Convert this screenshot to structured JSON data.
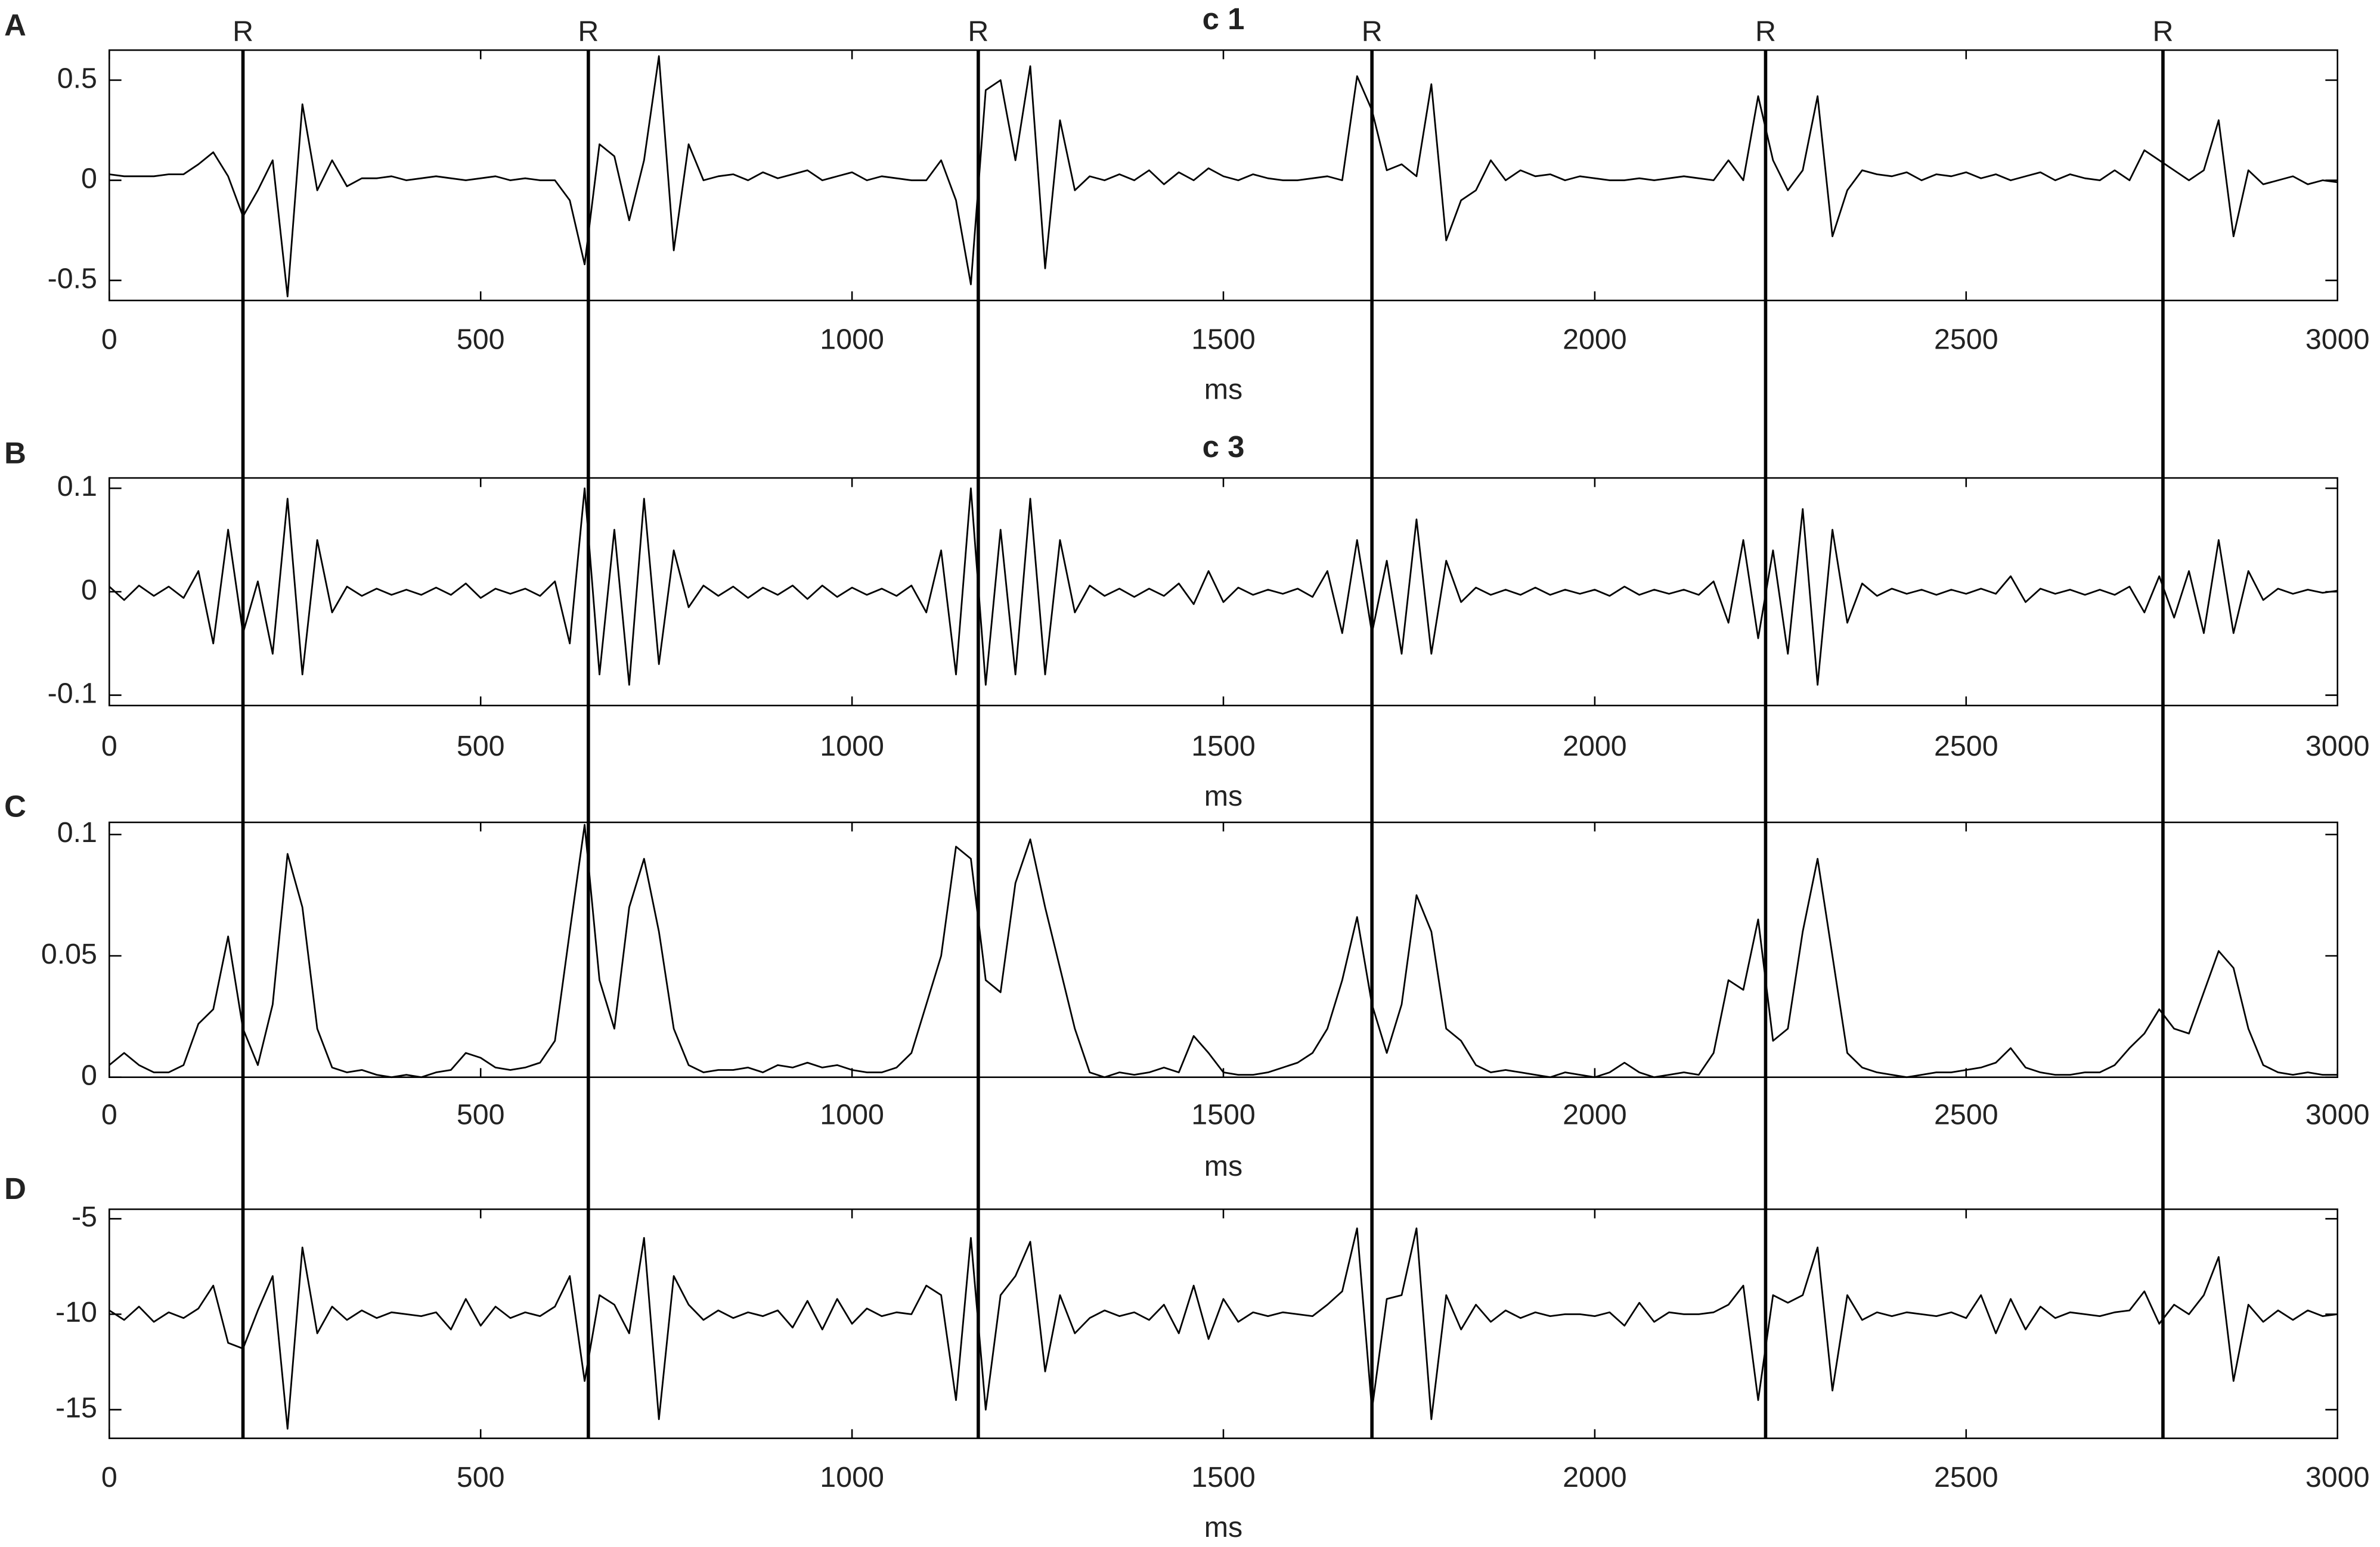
{
  "chart_data": [
    {
      "type": "line",
      "panel": "A",
      "title": "c 1",
      "xlabel": "ms",
      "color": "#000000",
      "xlim": [
        0,
        3000
      ],
      "xticks": [
        0,
        500,
        1000,
        1500,
        2000,
        2500,
        3000
      ],
      "ylim": [
        -0.6,
        0.65
      ],
      "yticks": [
        -0.5,
        0,
        0.5
      ],
      "x": [
        0,
        20,
        40,
        60,
        80,
        100,
        120,
        140,
        160,
        180,
        200,
        220,
        240,
        260,
        280,
        300,
        320,
        340,
        360,
        380,
        400,
        420,
        440,
        460,
        480,
        500,
        520,
        540,
        560,
        580,
        600,
        620,
        640,
        660,
        680,
        700,
        720,
        740,
        760,
        780,
        800,
        820,
        840,
        860,
        880,
        900,
        920,
        940,
        960,
        980,
        1000,
        1020,
        1040,
        1060,
        1080,
        1100,
        1120,
        1140,
        1160,
        1180,
        1200,
        1220,
        1240,
        1260,
        1280,
        1300,
        1320,
        1340,
        1360,
        1380,
        1400,
        1420,
        1440,
        1460,
        1480,
        1500,
        1520,
        1540,
        1560,
        1580,
        1600,
        1620,
        1640,
        1660,
        1680,
        1700,
        1720,
        1740,
        1760,
        1780,
        1800,
        1820,
        1840,
        1860,
        1880,
        1900,
        1920,
        1940,
        1960,
        1980,
        2000,
        2020,
        2040,
        2060,
        2080,
        2100,
        2120,
        2140,
        2160,
        2180,
        2200,
        2220,
        2240,
        2260,
        2280,
        2300,
        2320,
        2340,
        2360,
        2380,
        2400,
        2420,
        2440,
        2460,
        2480,
        2500,
        2520,
        2540,
        2560,
        2580,
        2600,
        2620,
        2640,
        2660,
        2680,
        2700,
        2720,
        2740,
        2760,
        2780,
        2800,
        2820,
        2840,
        2860,
        2880,
        2900,
        2920,
        2940,
        2960,
        2980,
        3000
      ],
      "values": [
        0.03,
        0.02,
        0.02,
        0.02,
        0.03,
        0.03,
        0.08,
        0.14,
        0.02,
        -0.18,
        -0.05,
        0.1,
        -0.58,
        0.38,
        -0.05,
        0.1,
        -0.03,
        0.01,
        0.01,
        0.02,
        0.0,
        0.01,
        0.02,
        0.01,
        0.0,
        0.01,
        0.02,
        0.0,
        0.01,
        0.0,
        0.0,
        -0.1,
        -0.42,
        0.18,
        0.12,
        -0.2,
        0.1,
        0.62,
        -0.35,
        0.18,
        0.0,
        0.02,
        0.03,
        0.0,
        0.04,
        0.01,
        0.03,
        0.05,
        0.0,
        0.02,
        0.04,
        0.0,
        0.02,
        0.01,
        0.0,
        0.0,
        0.1,
        -0.1,
        -0.52,
        0.45,
        0.5,
        0.1,
        0.57,
        -0.44,
        0.3,
        -0.05,
        0.02,
        0.0,
        0.03,
        0.0,
        0.05,
        -0.02,
        0.04,
        0.0,
        0.06,
        0.02,
        0.0,
        0.03,
        0.01,
        0.0,
        0.0,
        0.01,
        0.02,
        0.0,
        0.52,
        0.35,
        0.05,
        0.08,
        0.02,
        0.48,
        -0.3,
        -0.1,
        -0.05,
        0.1,
        0.0,
        0.05,
        0.02,
        0.03,
        0.0,
        0.02,
        0.01,
        0.0,
        0.0,
        0.01,
        0.0,
        0.01,
        0.02,
        0.01,
        0.0,
        0.1,
        0.0,
        0.42,
        0.1,
        -0.05,
        0.05,
        0.42,
        -0.28,
        -0.05,
        0.05,
        0.03,
        0.02,
        0.04,
        0.0,
        0.03,
        0.02,
        0.04,
        0.01,
        0.03,
        0.0,
        0.02,
        0.04,
        0.0,
        0.03,
        0.01,
        0.0,
        0.05,
        0.0,
        0.15,
        0.1,
        0.05,
        0.0,
        0.05,
        0.3,
        -0.28,
        0.05,
        -0.02,
        0.0,
        0.02,
        -0.02,
        0.0,
        -0.01
      ]
    },
    {
      "type": "line",
      "panel": "B",
      "title": "c 3",
      "xlabel": "ms",
      "color": "#000000",
      "xlim": [
        0,
        3000
      ],
      "xticks": [
        0,
        500,
        1000,
        1500,
        2000,
        2500,
        3000
      ],
      "ylim": [
        -0.11,
        0.11
      ],
      "yticks": [
        -0.1,
        0,
        0.1
      ],
      "x": [
        0,
        20,
        40,
        60,
        80,
        100,
        120,
        140,
        160,
        180,
        200,
        220,
        240,
        260,
        280,
        300,
        320,
        340,
        360,
        380,
        400,
        420,
        440,
        460,
        480,
        500,
        520,
        540,
        560,
        580,
        600,
        620,
        640,
        660,
        680,
        700,
        720,
        740,
        760,
        780,
        800,
        820,
        840,
        860,
        880,
        900,
        920,
        940,
        960,
        980,
        1000,
        1020,
        1040,
        1060,
        1080,
        1100,
        1120,
        1140,
        1160,
        1180,
        1200,
        1220,
        1240,
        1260,
        1280,
        1300,
        1320,
        1340,
        1360,
        1380,
        1400,
        1420,
        1440,
        1460,
        1480,
        1500,
        1520,
        1540,
        1560,
        1580,
        1600,
        1620,
        1640,
        1660,
        1680,
        1700,
        1720,
        1740,
        1760,
        1780,
        1800,
        1820,
        1840,
        1860,
        1880,
        1900,
        1920,
        1940,
        1960,
        1980,
        2000,
        2020,
        2040,
        2060,
        2080,
        2100,
        2120,
        2140,
        2160,
        2180,
        2200,
        2220,
        2240,
        2260,
        2280,
        2300,
        2320,
        2340,
        2360,
        2380,
        2400,
        2420,
        2440,
        2460,
        2480,
        2500,
        2520,
        2540,
        2560,
        2580,
        2600,
        2620,
        2640,
        2660,
        2680,
        2700,
        2720,
        2740,
        2760,
        2780,
        2800,
        2820,
        2840,
        2860,
        2880,
        2900,
        2920,
        2940,
        2960,
        2980,
        3000
      ],
      "values": [
        0.005,
        -0.008,
        0.006,
        -0.004,
        0.005,
        -0.006,
        0.02,
        -0.05,
        0.06,
        -0.04,
        0.01,
        -0.06,
        0.09,
        -0.08,
        0.05,
        -0.02,
        0.005,
        -0.004,
        0.003,
        -0.003,
        0.002,
        -0.003,
        0.004,
        -0.003,
        0.008,
        -0.006,
        0.003,
        -0.002,
        0.003,
        -0.004,
        0.01,
        -0.05,
        0.1,
        -0.08,
        0.06,
        -0.09,
        0.09,
        -0.07,
        0.04,
        -0.015,
        0.006,
        -0.004,
        0.005,
        -0.006,
        0.004,
        -0.003,
        0.006,
        -0.007,
        0.006,
        -0.005,
        0.004,
        -0.003,
        0.003,
        -0.004,
        0.006,
        -0.02,
        0.04,
        -0.08,
        0.1,
        -0.09,
        0.06,
        -0.08,
        0.09,
        -0.08,
        0.05,
        -0.02,
        0.006,
        -0.004,
        0.003,
        -0.005,
        0.003,
        -0.004,
        0.008,
        -0.012,
        0.02,
        -0.01,
        0.004,
        -0.003,
        0.002,
        -0.002,
        0.003,
        -0.005,
        0.02,
        -0.04,
        0.05,
        -0.04,
        0.03,
        -0.06,
        0.07,
        -0.06,
        0.03,
        -0.01,
        0.004,
        -0.003,
        0.002,
        -0.003,
        0.004,
        -0.003,
        0.002,
        -0.002,
        0.002,
        -0.004,
        0.005,
        -0.003,
        0.002,
        -0.002,
        0.002,
        -0.003,
        0.01,
        -0.03,
        0.05,
        -0.045,
        0.04,
        -0.06,
        0.08,
        -0.09,
        0.06,
        -0.03,
        0.008,
        -0.004,
        0.003,
        -0.002,
        0.002,
        -0.003,
        0.002,
        -0.002,
        0.003,
        -0.002,
        0.015,
        -0.01,
        0.003,
        -0.002,
        0.002,
        -0.003,
        0.002,
        -0.003,
        0.005,
        -0.02,
        0.015,
        -0.025,
        0.02,
        -0.04,
        0.05,
        -0.04,
        0.02,
        -0.008,
        0.003,
        -0.002,
        0.002,
        -0.001,
        0.001
      ]
    },
    {
      "type": "line",
      "panel": "C",
      "xlabel": "ms",
      "color": "#000000",
      "xlim": [
        0,
        3000
      ],
      "xticks": [
        0,
        500,
        1000,
        1500,
        2000,
        2500,
        3000
      ],
      "ylim": [
        0,
        0.105
      ],
      "yticks": [
        0,
        0.05,
        0.1
      ],
      "x": [
        0,
        20,
        40,
        60,
        80,
        100,
        120,
        140,
        160,
        180,
        200,
        220,
        240,
        260,
        280,
        300,
        320,
        340,
        360,
        380,
        400,
        420,
        440,
        460,
        480,
        500,
        520,
        540,
        560,
        580,
        600,
        620,
        640,
        660,
        680,
        700,
        720,
        740,
        760,
        780,
        800,
        820,
        840,
        860,
        880,
        900,
        920,
        940,
        960,
        980,
        1000,
        1020,
        1040,
        1060,
        1080,
        1100,
        1120,
        1140,
        1160,
        1180,
        1200,
        1220,
        1240,
        1260,
        1280,
        1300,
        1320,
        1340,
        1360,
        1380,
        1400,
        1420,
        1440,
        1460,
        1480,
        1500,
        1520,
        1540,
        1560,
        1580,
        1600,
        1620,
        1640,
        1660,
        1680,
        1700,
        1720,
        1740,
        1760,
        1780,
        1800,
        1820,
        1840,
        1860,
        1880,
        1900,
        1920,
        1940,
        1960,
        1980,
        2000,
        2020,
        2040,
        2060,
        2080,
        2100,
        2120,
        2140,
        2160,
        2180,
        2200,
        2220,
        2240,
        2260,
        2280,
        2300,
        2320,
        2340,
        2360,
        2380,
        2400,
        2420,
        2440,
        2460,
        2480,
        2500,
        2520,
        2540,
        2560,
        2580,
        2600,
        2620,
        2640,
        2660,
        2680,
        2700,
        2720,
        2740,
        2760,
        2780,
        2800,
        2820,
        2840,
        2860,
        2880,
        2900,
        2920,
        2940,
        2960,
        2980,
        3000
      ],
      "values": [
        0.005,
        0.01,
        0.005,
        0.002,
        0.002,
        0.005,
        0.022,
        0.028,
        0.058,
        0.02,
        0.005,
        0.03,
        0.092,
        0.07,
        0.02,
        0.004,
        0.002,
        0.003,
        0.001,
        0.0,
        0.001,
        0.0,
        0.002,
        0.003,
        0.01,
        0.008,
        0.004,
        0.003,
        0.004,
        0.006,
        0.015,
        0.06,
        0.104,
        0.04,
        0.02,
        0.07,
        0.09,
        0.06,
        0.02,
        0.005,
        0.002,
        0.003,
        0.003,
        0.004,
        0.002,
        0.005,
        0.004,
        0.006,
        0.004,
        0.005,
        0.003,
        0.002,
        0.002,
        0.004,
        0.01,
        0.03,
        0.05,
        0.095,
        0.09,
        0.04,
        0.035,
        0.08,
        0.098,
        0.07,
        0.045,
        0.02,
        0.002,
        0.0,
        0.002,
        0.001,
        0.002,
        0.004,
        0.002,
        0.017,
        0.01,
        0.002,
        0.001,
        0.001,
        0.002,
        0.004,
        0.006,
        0.01,
        0.02,
        0.04,
        0.066,
        0.03,
        0.01,
        0.03,
        0.075,
        0.06,
        0.02,
        0.015,
        0.005,
        0.002,
        0.003,
        0.002,
        0.001,
        0.0,
        0.002,
        0.001,
        0.0,
        0.002,
        0.006,
        0.002,
        0.0,
        0.001,
        0.002,
        0.001,
        0.01,
        0.04,
        0.036,
        0.065,
        0.015,
        0.02,
        0.06,
        0.09,
        0.05,
        0.01,
        0.004,
        0.002,
        0.001,
        0.0,
        0.001,
        0.002,
        0.002,
        0.003,
        0.004,
        0.006,
        0.012,
        0.004,
        0.002,
        0.001,
        0.001,
        0.002,
        0.002,
        0.005,
        0.012,
        0.018,
        0.028,
        0.02,
        0.018,
        0.035,
        0.052,
        0.045,
        0.02,
        0.005,
        0.002,
        0.001,
        0.002,
        0.001,
        0.001
      ]
    },
    {
      "type": "line",
      "panel": "D",
      "xlabel": "ms",
      "color": "#000000",
      "xlim": [
        0,
        3000
      ],
      "xticks": [
        0,
        500,
        1000,
        1500,
        2000,
        2500,
        3000
      ],
      "ylim": [
        -16.5,
        -4.5
      ],
      "yticks": [
        -15,
        -10,
        -5
      ],
      "x": [
        0,
        20,
        40,
        60,
        80,
        100,
        120,
        140,
        160,
        180,
        200,
        220,
        240,
        260,
        280,
        300,
        320,
        340,
        360,
        380,
        400,
        420,
        440,
        460,
        480,
        500,
        520,
        540,
        560,
        580,
        600,
        620,
        640,
        660,
        680,
        700,
        720,
        740,
        760,
        780,
        800,
        820,
        840,
        860,
        880,
        900,
        920,
        940,
        960,
        980,
        1000,
        1020,
        1040,
        1060,
        1080,
        1100,
        1120,
        1140,
        1160,
        1180,
        1200,
        1220,
        1240,
        1260,
        1280,
        1300,
        1320,
        1340,
        1360,
        1380,
        1400,
        1420,
        1440,
        1460,
        1480,
        1500,
        1520,
        1540,
        1560,
        1580,
        1600,
        1620,
        1640,
        1660,
        1680,
        1700,
        1720,
        1740,
        1760,
        1780,
        1800,
        1820,
        1840,
        1860,
        1880,
        1900,
        1920,
        1940,
        1960,
        1980,
        2000,
        2020,
        2040,
        2060,
        2080,
        2100,
        2120,
        2140,
        2160,
        2180,
        2200,
        2220,
        2240,
        2260,
        2280,
        2300,
        2320,
        2340,
        2360,
        2380,
        2400,
        2420,
        2440,
        2460,
        2480,
        2500,
        2520,
        2540,
        2560,
        2580,
        2600,
        2620,
        2640,
        2660,
        2680,
        2700,
        2720,
        2740,
        2760,
        2780,
        2800,
        2820,
        2840,
        2860,
        2880,
        2900,
        2920,
        2940,
        2960,
        2980,
        3000
      ],
      "values": [
        -9.8,
        -10.3,
        -9.6,
        -10.4,
        -9.9,
        -10.2,
        -9.7,
        -8.5,
        -11.5,
        -11.8,
        -9.8,
        -8.0,
        -16.0,
        -6.5,
        -11.0,
        -9.6,
        -10.3,
        -9.8,
        -10.2,
        -9.9,
        -10.0,
        -10.1,
        -9.9,
        -10.8,
        -9.2,
        -10.6,
        -9.6,
        -10.2,
        -9.9,
        -10.1,
        -9.6,
        -8.0,
        -13.5,
        -9.0,
        -9.5,
        -11.0,
        -6.0,
        -15.5,
        -8.0,
        -9.5,
        -10.3,
        -9.8,
        -10.2,
        -9.9,
        -10.1,
        -9.8,
        -10.7,
        -9.3,
        -10.8,
        -9.2,
        -10.5,
        -9.7,
        -10.1,
        -9.9,
        -10.0,
        -8.5,
        -9.0,
        -14.5,
        -6.0,
        -15.0,
        -9.0,
        -8.0,
        -6.2,
        -13.0,
        -9.0,
        -11.0,
        -10.2,
        -9.8,
        -10.1,
        -9.9,
        -10.3,
        -9.5,
        -11.0,
        -8.5,
        -11.3,
        -9.2,
        -10.4,
        -9.9,
        -10.1,
        -9.9,
        -10.0,
        -10.1,
        -9.5,
        -8.8,
        -5.5,
        -15.0,
        -9.2,
        -9.0,
        -5.5,
        -15.5,
        -9.0,
        -10.8,
        -9.5,
        -10.4,
        -9.8,
        -10.2,
        -9.9,
        -10.1,
        -10.0,
        -10.0,
        -10.1,
        -9.9,
        -10.6,
        -9.4,
        -10.4,
        -9.9,
        -10.0,
        -10.0,
        -9.9,
        -9.5,
        -8.5,
        -14.5,
        -9.0,
        -9.4,
        -9.0,
        -6.5,
        -14.0,
        -9.0,
        -10.3,
        -9.9,
        -10.1,
        -9.9,
        -10.0,
        -10.1,
        -9.9,
        -10.2,
        -9.0,
        -11.0,
        -9.2,
        -10.8,
        -9.6,
        -10.2,
        -9.9,
        -10.0,
        -10.1,
        -9.9,
        -9.8,
        -8.8,
        -10.5,
        -9.5,
        -10.0,
        -9.0,
        -7.0,
        -13.5,
        -9.5,
        -10.4,
        -9.8,
        -10.3,
        -9.8,
        -10.1,
        -10.0
      ]
    }
  ],
  "markers": {
    "label": "R",
    "x": [
      180,
      645,
      1170,
      1700,
      2230,
      2765
    ]
  }
}
